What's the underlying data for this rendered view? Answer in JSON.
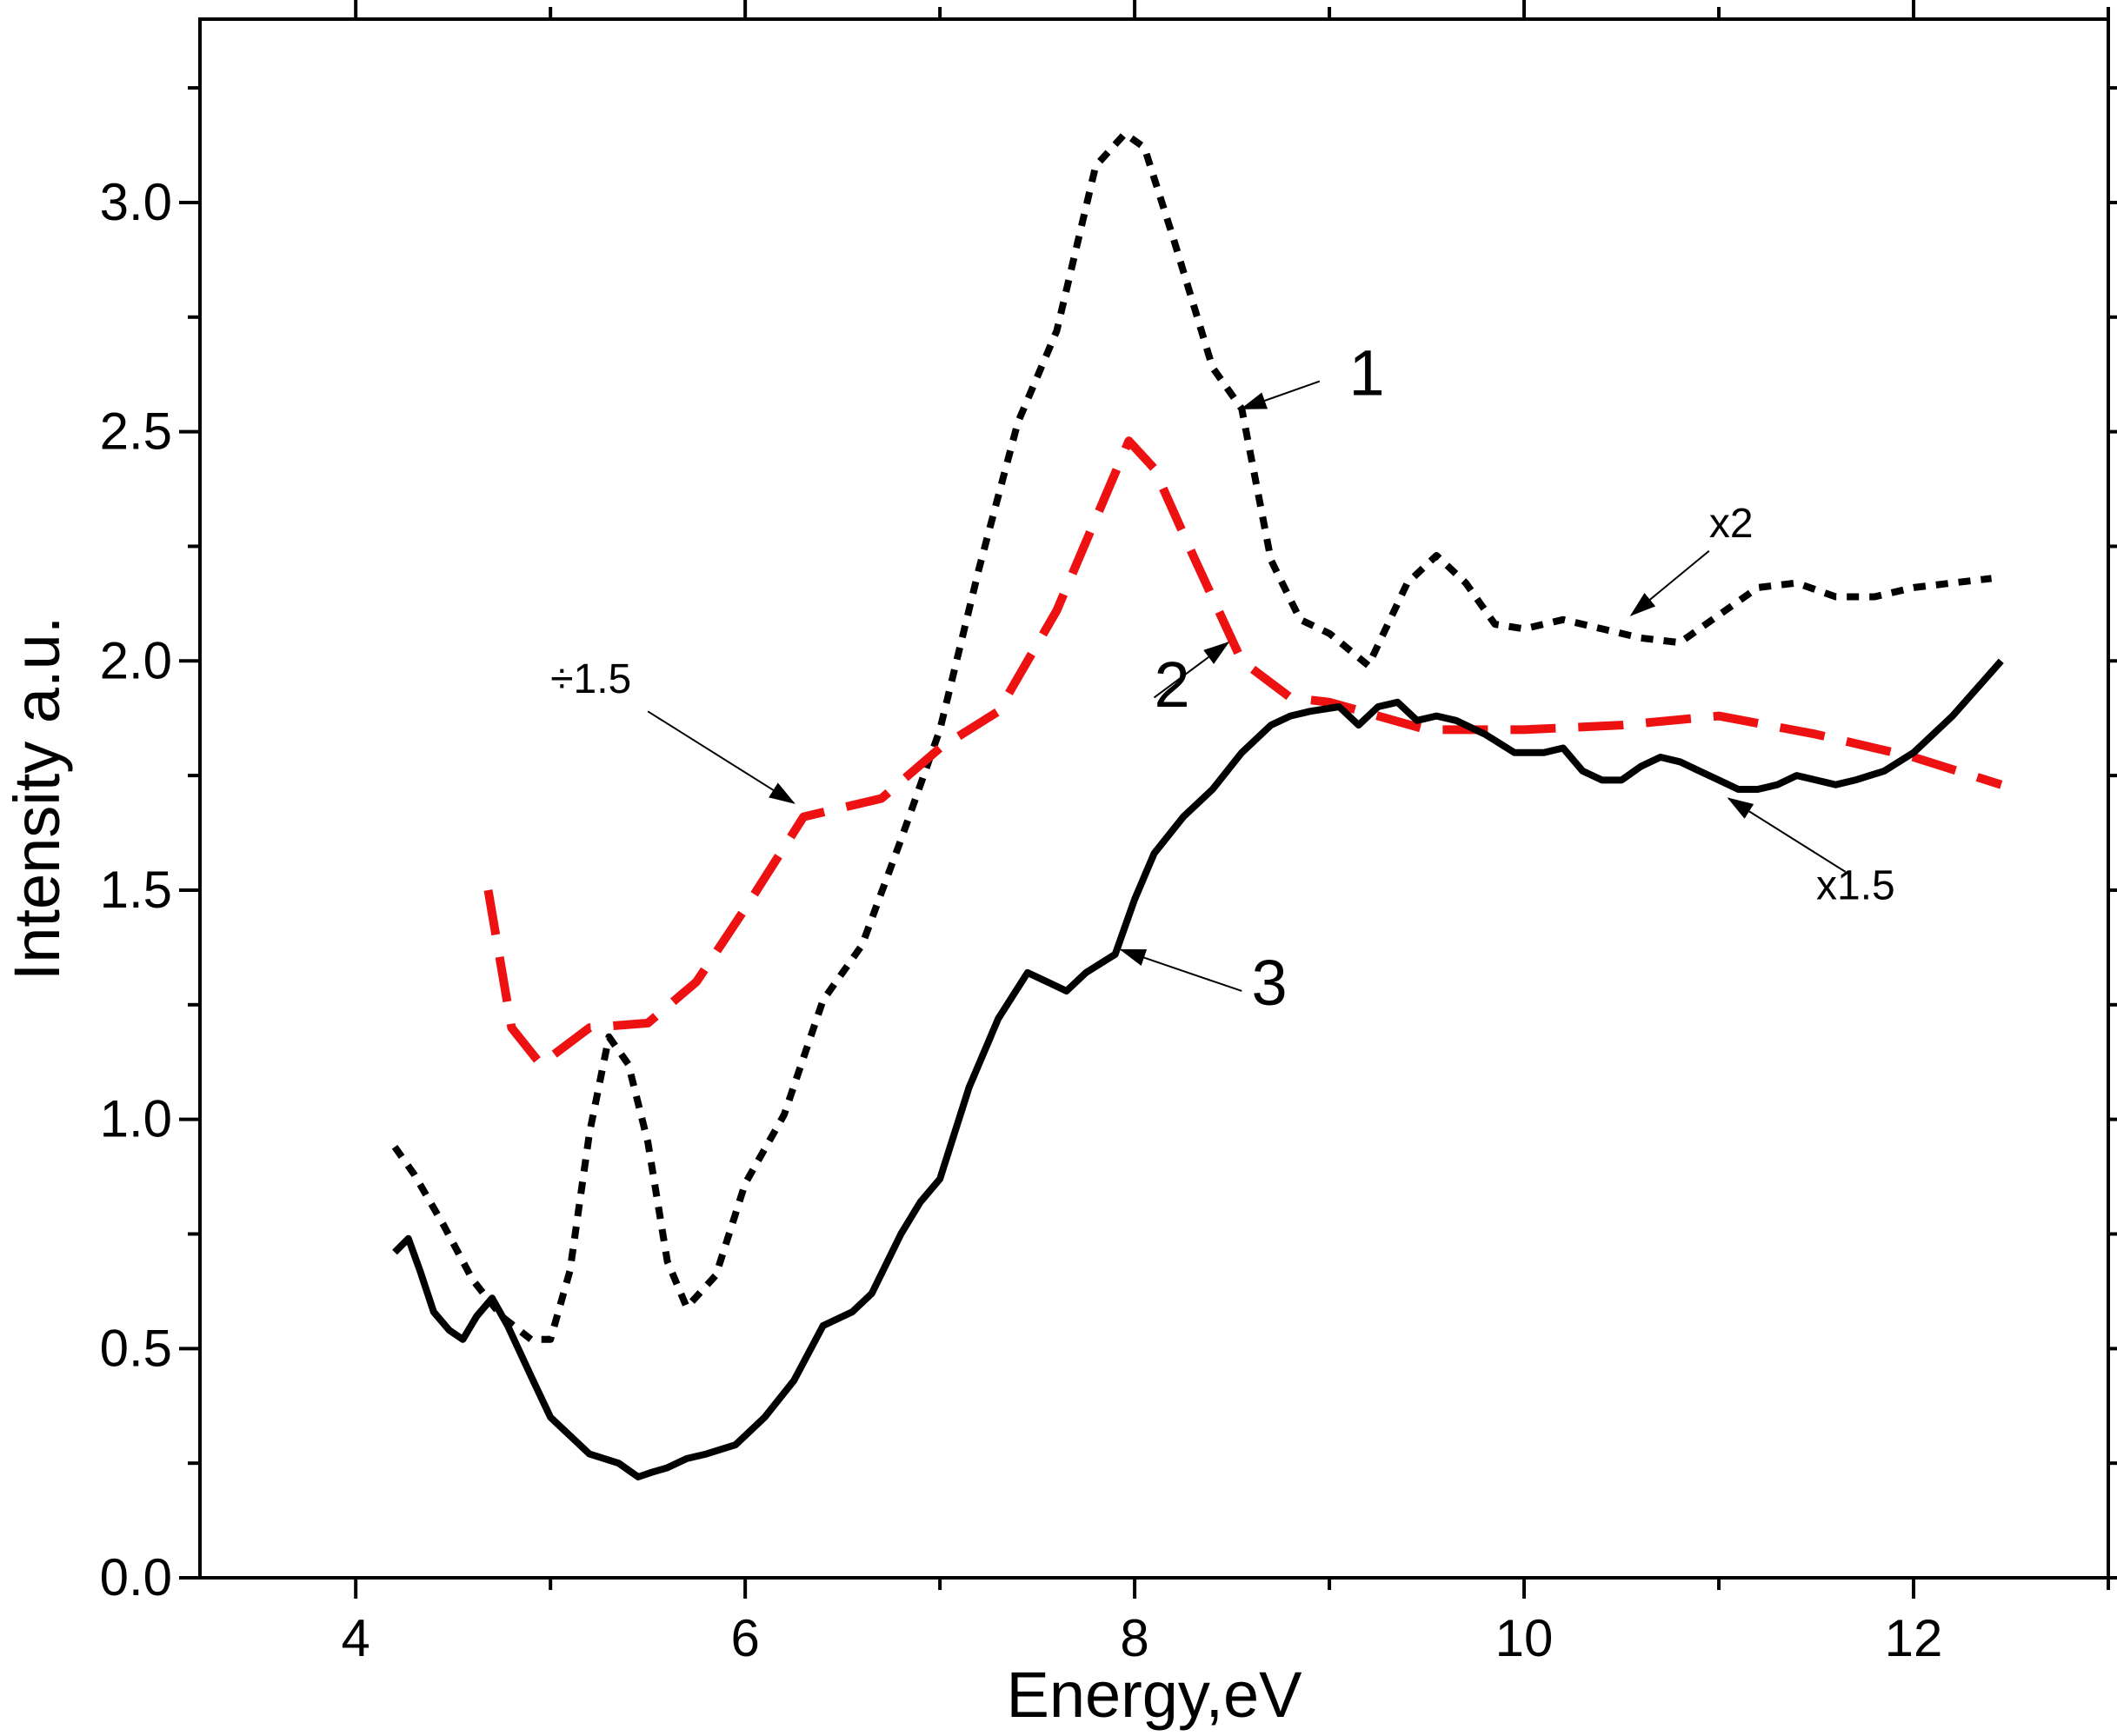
{
  "chart_data": {
    "type": "line",
    "title": "",
    "xlabel": "Energy,eV",
    "ylabel": "Intensity a.u.",
    "xlim": [
      3.2,
      13.0
    ],
    "ylim": [
      0.0,
      3.4
    ],
    "x_ticks": [
      {
        "value": 4,
        "label": "4"
      },
      {
        "value": 6,
        "label": "6"
      },
      {
        "value": 8,
        "label": "8"
      },
      {
        "value": 10,
        "label": "10"
      },
      {
        "value": 12,
        "label": "12"
      }
    ],
    "y_ticks": [
      {
        "value": 0.0,
        "label": "0.0"
      },
      {
        "value": 0.5,
        "label": "0.5"
      },
      {
        "value": 1.0,
        "label": "1.0"
      },
      {
        "value": 1.5,
        "label": "1.5"
      },
      {
        "value": 2.0,
        "label": "2.0"
      },
      {
        "value": 2.5,
        "label": "2.5"
      },
      {
        "value": 3.0,
        "label": "3.0"
      }
    ],
    "grid": false,
    "series": [
      {
        "name": "1",
        "color": "#000000",
        "style": "dotted",
        "x": [
          4.2,
          4.3,
          4.45,
          4.6,
          4.75,
          4.9,
          5.0,
          5.1,
          5.2,
          5.3,
          5.4,
          5.5,
          5.6,
          5.7,
          5.85,
          6.0,
          6.2,
          6.4,
          6.6,
          6.8,
          7.0,
          7.2,
          7.4,
          7.6,
          7.8,
          7.95,
          8.05,
          8.2,
          8.4,
          8.55,
          8.7,
          8.85,
          9.0,
          9.2,
          9.4,
          9.55,
          9.7,
          9.85,
          10.0,
          10.2,
          10.4,
          10.6,
          10.8,
          11.0,
          11.2,
          11.4,
          11.6,
          11.8,
          12.0,
          12.2,
          12.4
        ],
        "y": [
          0.94,
          0.88,
          0.77,
          0.65,
          0.57,
          0.52,
          0.52,
          0.67,
          0.97,
          1.18,
          1.12,
          0.95,
          0.69,
          0.59,
          0.66,
          0.86,
          1.01,
          1.26,
          1.38,
          1.61,
          1.85,
          2.2,
          2.52,
          2.72,
          3.08,
          3.15,
          3.12,
          2.92,
          2.64,
          2.55,
          2.22,
          2.09,
          2.06,
          1.99,
          2.17,
          2.23,
          2.17,
          2.08,
          2.07,
          2.09,
          2.07,
          2.05,
          2.04,
          2.1,
          2.16,
          2.17,
          2.14,
          2.14,
          2.16,
          2.17,
          2.18
        ]
      },
      {
        "name": "2",
        "color": "#ee1111",
        "style": "dashed",
        "x": [
          4.68,
          4.8,
          4.95,
          5.2,
          5.5,
          5.75,
          6.0,
          6.3,
          6.7,
          7.0,
          7.3,
          7.6,
          7.97,
          8.1,
          8.3,
          8.55,
          8.8,
          9.0,
          9.5,
          10.0,
          10.5,
          11.0,
          11.5,
          12.0,
          12.45
        ],
        "y": [
          1.5,
          1.2,
          1.12,
          1.2,
          1.21,
          1.3,
          1.46,
          1.66,
          1.7,
          1.81,
          1.89,
          2.11,
          2.48,
          2.42,
          2.23,
          2.0,
          1.92,
          1.91,
          1.85,
          1.85,
          1.86,
          1.88,
          1.84,
          1.79,
          1.73
        ]
      },
      {
        "name": "3",
        "color": "#000000",
        "style": "solid",
        "x": [
          4.2,
          4.27,
          4.33,
          4.4,
          4.48,
          4.55,
          4.62,
          4.7,
          4.78,
          4.9,
          5.0,
          5.1,
          5.2,
          5.35,
          5.45,
          5.52,
          5.6,
          5.7,
          5.8,
          5.95,
          6.1,
          6.25,
          6.4,
          6.55,
          6.65,
          6.8,
          6.9,
          7.0,
          7.15,
          7.3,
          7.45,
          7.55,
          7.65,
          7.75,
          7.9,
          8.0,
          8.1,
          8.25,
          8.4,
          8.55,
          8.7,
          8.8,
          8.9,
          9.05,
          9.15,
          9.25,
          9.35,
          9.45,
          9.55,
          9.65,
          9.8,
          9.95,
          10.1,
          10.2,
          10.3,
          10.4,
          10.5,
          10.6,
          10.7,
          10.8,
          10.9,
          11.0,
          11.1,
          11.2,
          11.3,
          11.4,
          11.5,
          11.6,
          11.7,
          11.85,
          12.0,
          12.2,
          12.45
        ],
        "y": [
          0.71,
          0.74,
          0.67,
          0.58,
          0.54,
          0.52,
          0.57,
          0.61,
          0.55,
          0.44,
          0.35,
          0.31,
          0.27,
          0.25,
          0.22,
          0.23,
          0.24,
          0.26,
          0.27,
          0.29,
          0.35,
          0.43,
          0.55,
          0.58,
          0.62,
          0.75,
          0.82,
          0.87,
          1.07,
          1.22,
          1.32,
          1.3,
          1.28,
          1.32,
          1.36,
          1.48,
          1.58,
          1.66,
          1.72,
          1.8,
          1.86,
          1.88,
          1.89,
          1.9,
          1.86,
          1.9,
          1.91,
          1.87,
          1.88,
          1.87,
          1.84,
          1.8,
          1.8,
          1.81,
          1.76,
          1.74,
          1.74,
          1.77,
          1.79,
          1.78,
          1.76,
          1.74,
          1.72,
          1.72,
          1.73,
          1.75,
          1.74,
          1.73,
          1.74,
          1.76,
          1.8,
          1.88,
          2.0
        ]
      }
    ],
    "annotations": [
      {
        "id": "label-1",
        "text": "1",
        "size": "large",
        "at": [
          9.1,
          2.58
        ],
        "arrow_to": [
          8.55,
          2.55
        ],
        "arrow_from": [
          8.95,
          2.61
        ]
      },
      {
        "id": "label-2",
        "text": "2",
        "size": "large",
        "at": [
          8.1,
          1.9
        ],
        "arrow_to": [
          8.48,
          2.04
        ],
        "arrow_from": [
          8.1,
          1.92
        ]
      },
      {
        "id": "label-3",
        "text": "3",
        "size": "large",
        "at": [
          8.6,
          1.25
        ],
        "arrow_to": [
          7.93,
          1.37
        ],
        "arrow_from": [
          8.55,
          1.28
        ]
      },
      {
        "id": "label-x2",
        "text": "x2",
        "size": "small",
        "at": [
          10.95,
          2.27
        ],
        "arrow_to": [
          10.55,
          2.1
        ],
        "arrow_from": [
          10.95,
          2.24
        ]
      },
      {
        "id": "label-x1.5",
        "text": "x1.5",
        "size": "small",
        "at": [
          11.5,
          1.48
        ],
        "arrow_to": [
          11.05,
          1.7
        ],
        "arrow_from": [
          11.65,
          1.54
        ]
      },
      {
        "id": "label-div1.5",
        "text": "÷1.5",
        "size": "small",
        "at": [
          5.0,
          1.93
        ],
        "arrow_to": [
          6.25,
          1.69
        ],
        "arrow_from": [
          5.5,
          1.89
        ]
      }
    ]
  }
}
